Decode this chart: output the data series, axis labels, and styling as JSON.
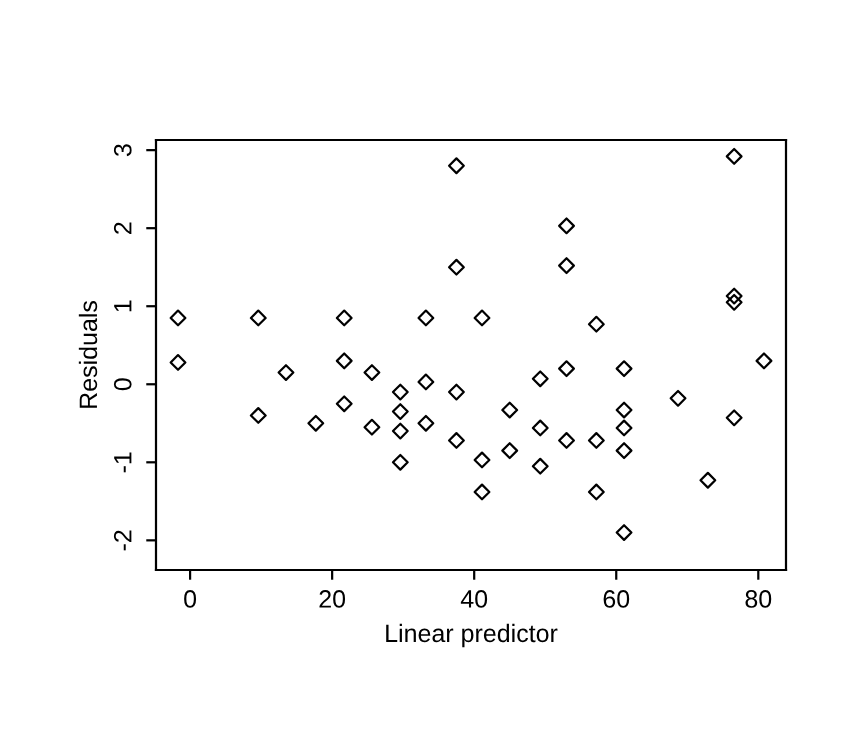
{
  "chart_data": {
    "type": "scatter",
    "xlabel": "Linear predictor",
    "ylabel": "Residuals",
    "marker": "diamond",
    "grid": false,
    "x": [
      -1.7,
      -1.7,
      9.6,
      9.6,
      13.5,
      17.7,
      21.7,
      21.7,
      21.7,
      25.6,
      25.6,
      29.6,
      29.6,
      29.6,
      29.6,
      33.2,
      33.2,
      33.2,
      37.5,
      37.5,
      37.5,
      37.5,
      41.1,
      41.1,
      41.1,
      45,
      45,
      49.3,
      49.3,
      49.3,
      53,
      53,
      53,
      53,
      57.2,
      57.2,
      57.2,
      61.1,
      61.1,
      61.1,
      61.1,
      61.1,
      68.7,
      72.9,
      76.6,
      76.6,
      76.6,
      76.6,
      80.8
    ],
    "values": [
      0.85,
      0.28,
      0.85,
      -0.4,
      0.15,
      -0.5,
      0.85,
      0.3,
      -0.25,
      0.15,
      -0.55,
      -0.1,
      -0.35,
      -0.6,
      -1.0,
      0.85,
      0.03,
      -0.5,
      2.8,
      1.5,
      -0.1,
      -0.72,
      0.85,
      -0.97,
      -1.38,
      -0.33,
      -0.85,
      -0.56,
      0.07,
      -1.05,
      2.03,
      1.52,
      0.2,
      -0.72,
      0.77,
      -0.72,
      -1.38,
      0.2,
      -0.33,
      -0.56,
      -0.85,
      -1.9,
      -0.18,
      -1.23,
      2.92,
      1.05,
      1.13,
      -0.43,
      0.3
    ],
    "color": "#000000",
    "xlim": [
      -4.8,
      83.9
    ],
    "ylim": [
      -2.38,
      3.13
    ],
    "xticks": [
      0,
      20,
      40,
      60,
      80
    ],
    "yticks": [
      -2,
      -1,
      0,
      1,
      2,
      3
    ]
  }
}
